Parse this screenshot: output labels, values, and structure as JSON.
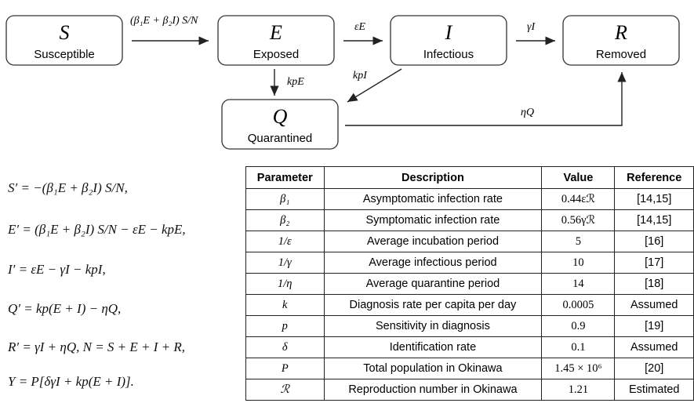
{
  "nodes": [
    {
      "symbol": "S",
      "label": "Susceptible"
    },
    {
      "symbol": "E",
      "label": "Exposed"
    },
    {
      "symbol": "I",
      "label": "Infectious"
    },
    {
      "symbol": "R",
      "label": "Removed"
    },
    {
      "symbol": "Q",
      "label": "Quarantined"
    }
  ],
  "edges": [
    {
      "label": "(β₁E + β₂I) S/N"
    },
    {
      "label": "εE"
    },
    {
      "label": "γI"
    },
    {
      "label": "kpE"
    },
    {
      "label": "kpI"
    },
    {
      "label": "ηQ"
    }
  ],
  "equations": [
    "S′ = −(β₁E + β₂I) S/N,",
    "E′ = (β₁E + β₂I) S/N − εE − kpE,",
    "I′ = εE − γI − kpI,",
    "Q′ = kp(E + I) − ηQ,",
    "R′ = γI + ηQ,   N = S + E + I + R,",
    "Y = P[δγI + kp(E + I)]."
  ],
  "table": {
    "header": [
      "Parameter",
      "Description",
      "Value",
      "Reference"
    ],
    "rows": [
      [
        "β₁",
        "Asymptomatic infection rate",
        "0.44εℛ",
        "[14,15]"
      ],
      [
        "β₂",
        "Symptomatic infection rate",
        "0.56γℛ",
        "[14,15]"
      ],
      [
        "1/ε",
        "Average incubation period",
        "5",
        "[16]"
      ],
      [
        "1/γ",
        "Average infectious period",
        "10",
        "[17]"
      ],
      [
        "1/η",
        "Average quarantine period",
        "14",
        "[18]"
      ],
      [
        "k",
        "Diagnosis rate per capita per day",
        "0.0005",
        "Assumed"
      ],
      [
        "p",
        "Sensitivity in diagnosis",
        "0.9",
        "[19]"
      ],
      [
        "δ",
        "Identification rate",
        "0.1",
        "Assumed"
      ],
      [
        "P",
        "Total population in Okinawa",
        "1.45 × 10⁶",
        "[20]"
      ],
      [
        "ℛ",
        "Reproduction number in Okinawa",
        "1.21",
        "Estimated"
      ]
    ]
  }
}
